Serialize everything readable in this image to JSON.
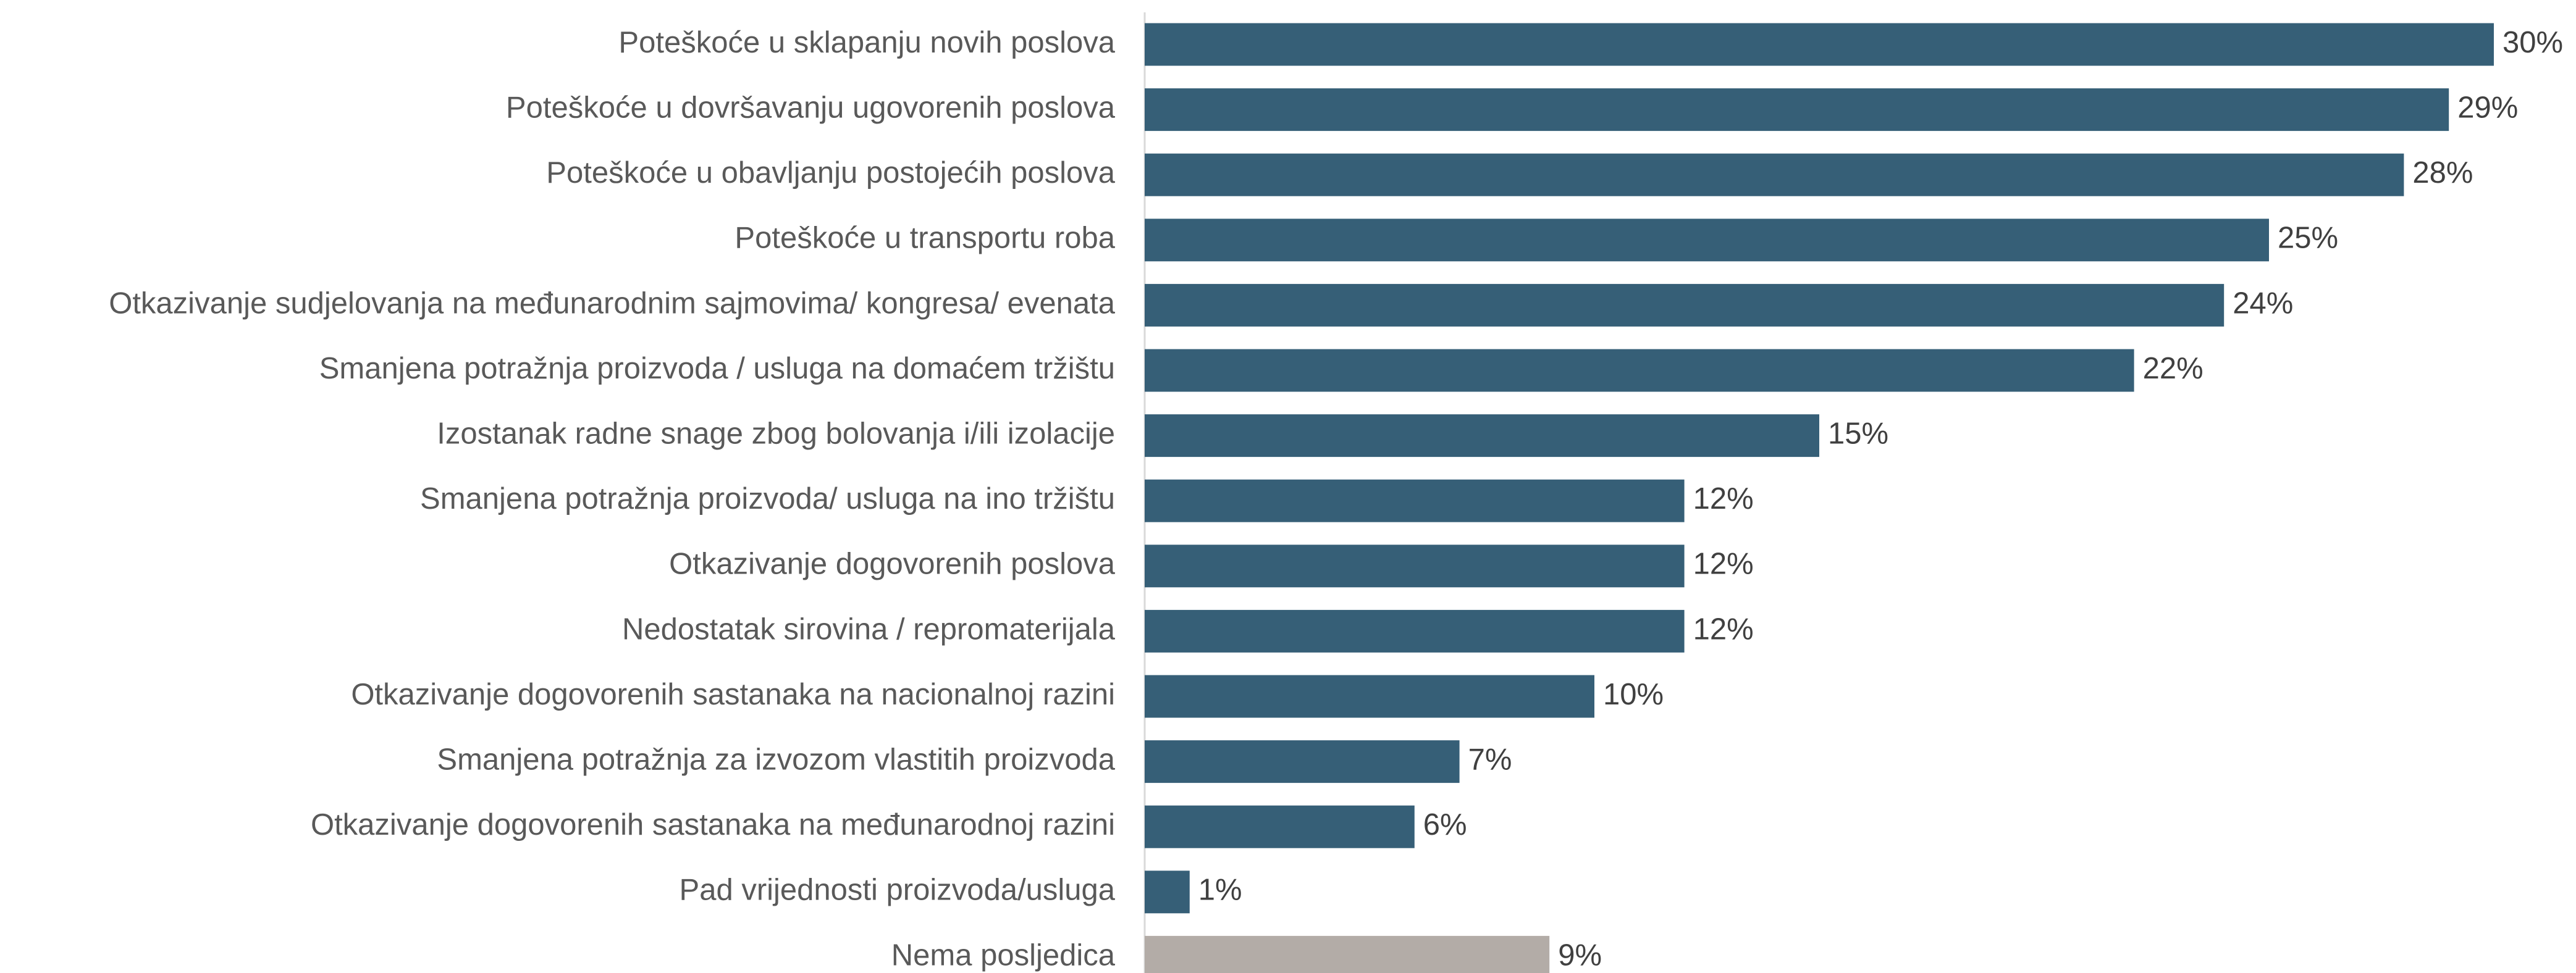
{
  "chart_data": {
    "type": "barh",
    "categories": [
      "Poteškoće u sklapanju novih poslova",
      "Poteškoće u dovršavanju ugovorenih poslova",
      "Poteškoće u obavljanju postojećih poslova",
      "Poteškoće u transportu roba",
      "Otkazivanje sudjelovanja na međunarodnim sajmovima/ kongresa/ evenata",
      "Smanjena potražnja proizvoda / usluga na domaćem tržištu",
      "Izostanak radne snage zbog bolovanja i/ili izolacije",
      "Smanjena potražnja proizvoda/ usluga na ino tržištu",
      "Otkazivanje dogovorenih poslova",
      "Nedostatak sirovina / repromaterijala",
      "Otkazivanje dogovorenih sastanaka na nacionalnoj razini",
      "Smanjena potražnja za izvozom vlastitih proizvoda",
      "Otkazivanje dogovorenih sastanaka na međunarodnoj razini",
      "Pad vrijednosti proizvoda/usluga",
      "Nema posljedica"
    ],
    "values": [
      30,
      29,
      28,
      25,
      24,
      22,
      15,
      12,
      12,
      12,
      10,
      7,
      6,
      1,
      9
    ],
    "value_labels": [
      "30%",
      "29%",
      "28%",
      "25%",
      "24%",
      "22%",
      "15%",
      "12%",
      "12%",
      "12%",
      "10%",
      "7%",
      "6%",
      "1%",
      "9%"
    ],
    "colors": [
      "#365f77",
      "#365f77",
      "#365f77",
      "#365f77",
      "#365f77",
      "#365f77",
      "#365f77",
      "#365f77",
      "#365f77",
      "#365f77",
      "#365f77",
      "#365f77",
      "#365f77",
      "#365f77",
      "#b3aca7"
    ]
  }
}
